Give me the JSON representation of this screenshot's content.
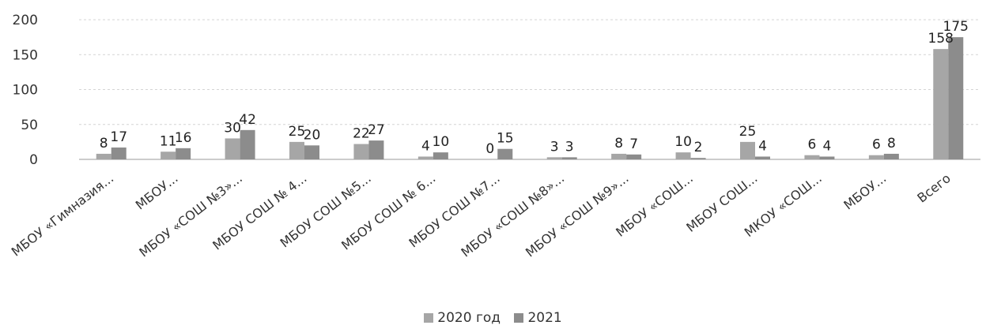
{
  "chart_data": {
    "type": "bar",
    "title": "",
    "xlabel": "",
    "ylabel": "",
    "ylim": [
      0,
      200
    ],
    "yticks": [
      0,
      50,
      100,
      150,
      200
    ],
    "grid": true,
    "legend_position": "bottom",
    "categories": [
      "МБОУ «Гимназия...",
      "МБОУ...",
      "МБОУ «СОШ №3»...",
      "МБОУ СОШ № 4...",
      "МБОУ СОШ №5...",
      "МБОУ СОШ № 6...",
      "МБОУ СОШ №7...",
      "МБОУ «СОШ №8»...",
      "МБОУ «СОШ №9»...",
      "МБОУ «СОШ...",
      "МБОУ СОШ...",
      "МКОУ «СОШ...",
      "МБОУ...",
      "Всего"
    ],
    "series": [
      {
        "name": "2020 год",
        "color": "#a6a6a6",
        "values": [
          8,
          11,
          30,
          25,
          22,
          4,
          0,
          3,
          8,
          10,
          25,
          6,
          6,
          158
        ]
      },
      {
        "name": "2021",
        "color": "#8c8c8c",
        "values": [
          17,
          16,
          42,
          20,
          27,
          10,
          15,
          3,
          7,
          2,
          4,
          4,
          8,
          175
        ]
      }
    ]
  }
}
